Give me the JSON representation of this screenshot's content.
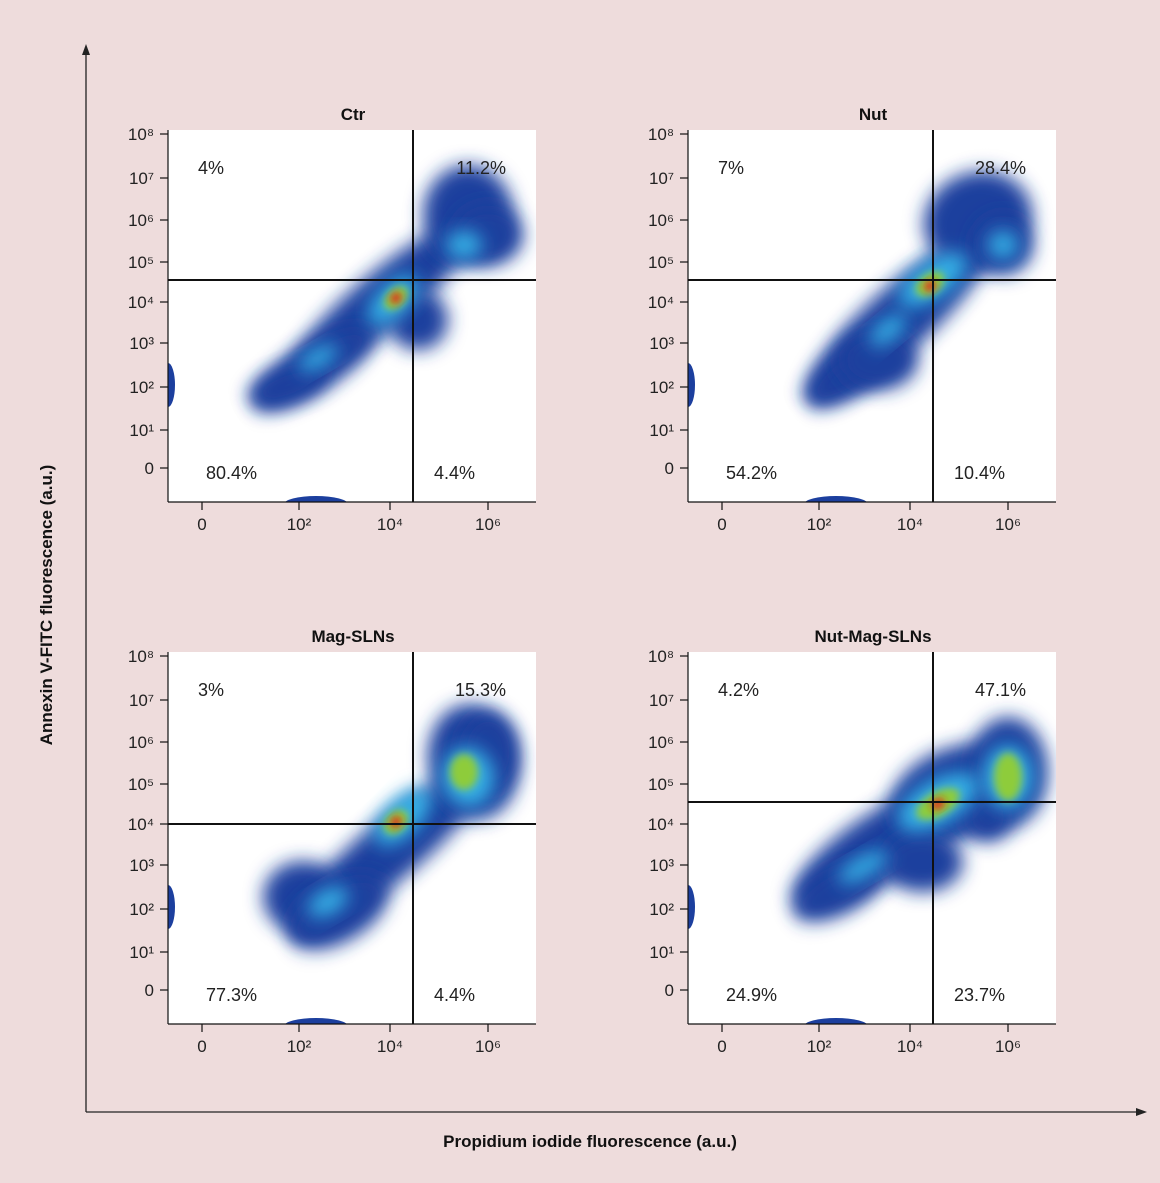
{
  "figure": {
    "x_title": "Propidium iodide fluorescence (a.u.)",
    "y_title": "Annexin V-FITC fluorescence (a.u.)",
    "colors": {
      "background": "#eedcdc",
      "panel": "#ffffff",
      "density_low": "#1c3f9e",
      "density_mid": "#35b0e6",
      "density_high": "#8ecc3a",
      "density_peak": "#e8201c"
    }
  },
  "chart_data": [
    {
      "type": "scatter",
      "subtype": "flow-cytometry-density",
      "title": "Ctr",
      "x_ticks": [
        "0",
        "10²",
        "10⁴",
        "10⁶"
      ],
      "y_ticks": [
        "0",
        "10¹",
        "10²",
        "10³",
        "10⁴",
        "10⁵",
        "10⁶",
        "10⁷",
        "10⁸"
      ],
      "quadrants": {
        "upper_left": "4%",
        "upper_right": "11.2%",
        "lower_left": "80.4%",
        "lower_right": "4.4%"
      }
    },
    {
      "type": "scatter",
      "subtype": "flow-cytometry-density",
      "title": "Nut",
      "x_ticks": [
        "0",
        "10²",
        "10⁴",
        "10⁶"
      ],
      "y_ticks": [
        "0",
        "10¹",
        "10²",
        "10³",
        "10⁴",
        "10⁵",
        "10⁶",
        "10⁷",
        "10⁸"
      ],
      "quadrants": {
        "upper_left": "7%",
        "upper_right": "28.4%",
        "lower_left": "54.2%",
        "lower_right": "10.4%"
      }
    },
    {
      "type": "scatter",
      "subtype": "flow-cytometry-density",
      "title": "Mag-SLNs",
      "x_ticks": [
        "0",
        "10²",
        "10⁴",
        "10⁶"
      ],
      "y_ticks": [
        "0",
        "10¹",
        "10²",
        "10³",
        "10⁴",
        "10⁵",
        "10⁶",
        "10⁷",
        "10⁸"
      ],
      "quadrants": {
        "upper_left": "3%",
        "upper_right": "15.3%",
        "lower_left": "77.3%",
        "lower_right": "4.4%"
      }
    },
    {
      "type": "scatter",
      "subtype": "flow-cytometry-density",
      "title": "Nut-Mag-SLNs",
      "x_ticks": [
        "0",
        "10²",
        "10⁴",
        "10⁶"
      ],
      "y_ticks": [
        "0",
        "10¹",
        "10²",
        "10³",
        "10⁴",
        "10⁵",
        "10⁶",
        "10⁷",
        "10⁸"
      ],
      "quadrants": {
        "upper_left": "4.2%",
        "upper_right": "47.1%",
        "lower_left": "24.9%",
        "lower_right": "23.7%"
      }
    }
  ]
}
